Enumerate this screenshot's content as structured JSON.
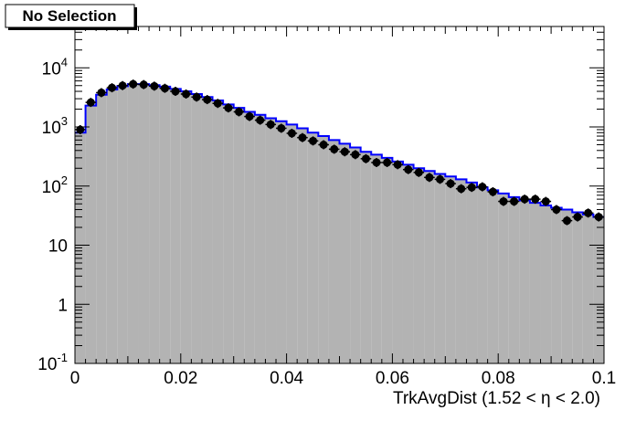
{
  "chart_data": {
    "type": "histogram",
    "title": "No Selection",
    "xlabel": "TrkAvgDist (1.52 <  η < 2.0)",
    "ylabel": "",
    "xlim": [
      0,
      0.1
    ],
    "ylim": [
      0.1,
      50000
    ],
    "yscale": "log",
    "grid": false,
    "legend": "none",
    "x_tick_labels": [
      "0",
      "0.02",
      "0.04",
      "0.06",
      "0.08",
      "0.1"
    ],
    "x_ticks": [
      0,
      0.02,
      0.04,
      0.06,
      0.08,
      0.1
    ],
    "y_tick_labels": [
      {
        "value": 0.1,
        "base": "10",
        "exp": "-1"
      },
      {
        "value": 1,
        "base": "1",
        "exp": ""
      },
      {
        "value": 10,
        "base": "10",
        "exp": ""
      },
      {
        "value": 100,
        "base": "10",
        "exp": "2"
      },
      {
        "value": 1000,
        "base": "10",
        "exp": "3"
      },
      {
        "value": 10000,
        "base": "10",
        "exp": "4"
      }
    ],
    "bin_edges_start": 0,
    "bin_width": 0.002,
    "series": [
      {
        "style": "filled-histogram",
        "fill_color": "#b3b3b3",
        "line_color": "#0000ff",
        "values": [
          800,
          2300,
          3500,
          4300,
          4900,
          5300,
          5300,
          5100,
          4800,
          4400,
          4000,
          3600,
          3200,
          2800,
          2400,
          2100,
          1800,
          1600,
          1400,
          1250,
          1100,
          950,
          800,
          700,
          600,
          520,
          450,
          380,
          340,
          300,
          260,
          230,
          200,
          180,
          160,
          145,
          130,
          115,
          95,
          85,
          75,
          65,
          57,
          52,
          47,
          43,
          40,
          36,
          33,
          30
        ]
      },
      {
        "style": "points",
        "color": "#000000",
        "values": [
          900,
          2600,
          3800,
          4600,
          5000,
          5300,
          5200,
          4900,
          4500,
          4000,
          3600,
          3200,
          2900,
          2500,
          2100,
          1800,
          1500,
          1300,
          1100,
          950,
          780,
          660,
          580,
          500,
          420,
          380,
          340,
          290,
          250,
          250,
          230,
          190,
          170,
          140,
          130,
          110,
          90,
          95,
          97,
          80,
          55,
          55,
          60,
          60,
          55,
          40,
          26,
          30,
          35,
          30
        ]
      }
    ]
  }
}
